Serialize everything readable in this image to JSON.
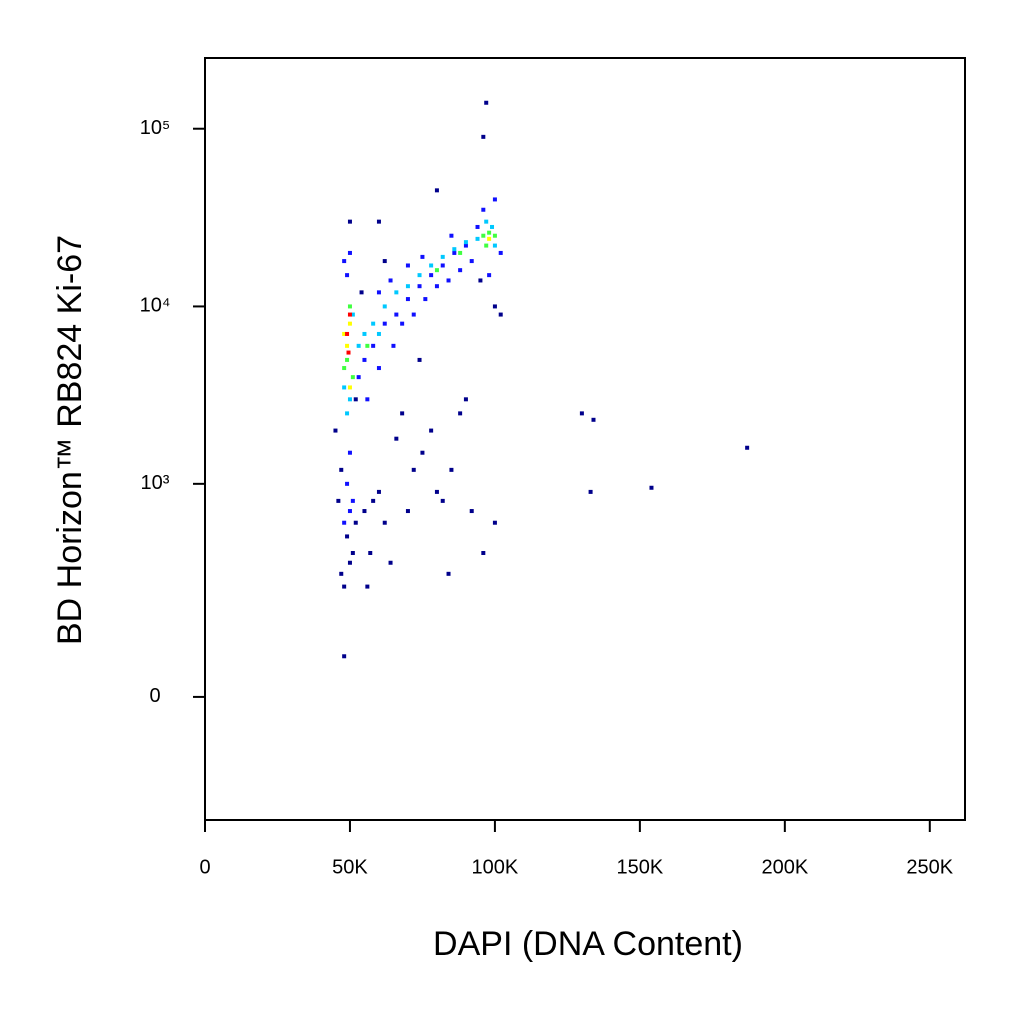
{
  "chart_data": {
    "type": "scatter",
    "xlabel": "DAPI (DNA Content)",
    "ylabel": "BD Horizon™ RB824 Ki-67",
    "xlim": [
      0,
      262144
    ],
    "ylim": [
      -300,
      250000
    ],
    "yscale": "asinh",
    "xticks": [
      0,
      {
        "value": 50000,
        "label": "50K"
      },
      {
        "value": 100000,
        "label": "100K"
      },
      {
        "value": 150000,
        "label": "150K"
      },
      {
        "value": 200000,
        "label": "200K"
      },
      {
        "value": 250000,
        "label": "250K"
      }
    ],
    "yticks": [
      0,
      {
        "value": 1000,
        "label": "10³"
      },
      {
        "value": 10000,
        "label": "10⁴"
      },
      {
        "value": 100000,
        "label": "10⁵"
      }
    ],
    "series": [
      {
        "color": "#00008b",
        "x": [
          48000,
          47000,
          50000,
          51000,
          49000,
          52000,
          55000,
          58000,
          60000,
          62000,
          57000,
          64000,
          70000,
          72000,
          75000,
          78000,
          80000,
          82000,
          85000,
          88000,
          90000,
          92000,
          96000,
          100000,
          84000,
          66000,
          68000,
          56000,
          47000,
          46000,
          130000,
          134000,
          187000,
          133000,
          154000,
          48000,
          80000,
          97000,
          96000,
          60000,
          50000,
          102000,
          100000,
          95000,
          74000,
          62000,
          45000,
          52000,
          54000
        ],
        "values": [
          250,
          300,
          350,
          400,
          500,
          600,
          700,
          800,
          900,
          600,
          400,
          350,
          700,
          1200,
          1500,
          2000,
          900,
          800,
          1200,
          2500,
          3000,
          700,
          400,
          600,
          300,
          1800,
          2500,
          250,
          1200,
          800,
          2500,
          2300,
          1600,
          900,
          950,
          70,
          45000,
          140000,
          90000,
          30000,
          30000,
          9000,
          10000,
          14000,
          5000,
          18000,
          2000,
          3000,
          12000
        ]
      },
      {
        "color": "#1010ff",
        "x": [
          50000,
          49000,
          51000,
          50000,
          48000,
          49000,
          48000,
          50000,
          53000,
          55000,
          58000,
          60000,
          62000,
          65000,
          66000,
          68000,
          70000,
          72000,
          74000,
          76000,
          78000,
          80000,
          82000,
          84000,
          86000,
          88000,
          90000,
          92000,
          94000,
          96000,
          100000,
          102000,
          98000,
          60000,
          64000,
          70000,
          56000,
          75000,
          85000
        ],
        "values": [
          1500,
          1000,
          800,
          700,
          600,
          15000,
          18000,
          20000,
          4000,
          5000,
          6000,
          4500,
          8000,
          6000,
          9000,
          8000,
          11000,
          9000,
          13000,
          11000,
          15000,
          13000,
          17000,
          14000,
          20000,
          16000,
          22000,
          18000,
          28000,
          35000,
          40000,
          20000,
          15000,
          12000,
          14000,
          17000,
          3000,
          19000,
          25000
        ]
      },
      {
        "color": "#00c8ff",
        "x": [
          49000,
          50000,
          48000,
          51000,
          55000,
          58000,
          62000,
          66000,
          70000,
          74000,
          78000,
          82000,
          86000,
          90000,
          94000,
          97000,
          100000,
          99000,
          53000,
          60000
        ],
        "values": [
          2500,
          3000,
          3500,
          9000,
          7000,
          8000,
          10000,
          12000,
          13000,
          15000,
          17000,
          19000,
          21000,
          23000,
          24000,
          30000,
          22000,
          28000,
          6000,
          7000
        ]
      },
      {
        "color": "#40ff40",
        "x": [
          48000,
          49000,
          50000,
          51000,
          96000,
          98000,
          97000,
          100000,
          88000,
          80000,
          56000
        ],
        "values": [
          4500,
          5000,
          10000,
          4000,
          25000,
          26000,
          22000,
          25000,
          20000,
          16000,
          6000
        ]
      },
      {
        "color": "#ffff00",
        "x": [
          49000,
          50000,
          48000,
          50000,
          98000
        ],
        "values": [
          6000,
          8000,
          7000,
          3500,
          24000
        ]
      },
      {
        "color": "#ff0000",
        "x": [
          49000,
          49500,
          50000
        ],
        "values": [
          7000,
          5500,
          9000
        ]
      }
    ]
  }
}
